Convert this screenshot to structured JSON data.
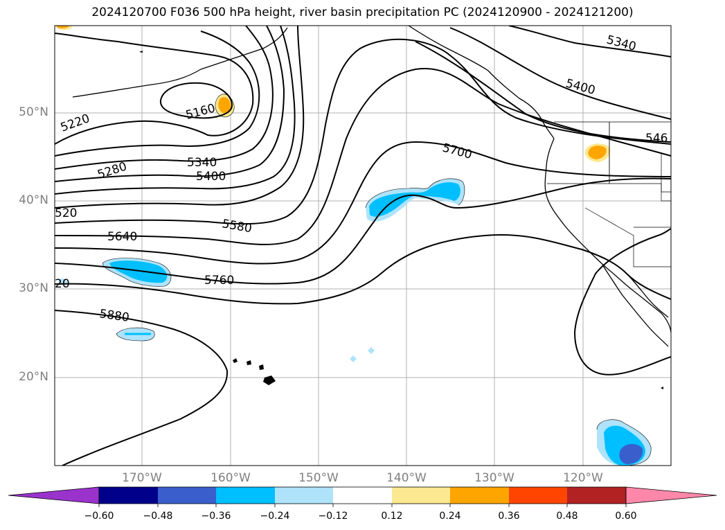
{
  "title": "2024120700 F036 500 hPa height, river basin precipitation PC (2024120900 - 2024121200)",
  "lat_labels": [
    "50°N",
    "40°N",
    "30°N",
    "20°N"
  ],
  "lon_labels": [
    "170°W",
    "160°W",
    "150°W",
    "140°W",
    "130°W",
    "120°W"
  ],
  "contour_labels": [
    {
      "text": "5160"
    },
    {
      "text": "5220"
    },
    {
      "text": "5280"
    },
    {
      "text": "5340"
    },
    {
      "text": "5340"
    },
    {
      "text": "5400"
    },
    {
      "text": "5400"
    },
    {
      "text": "546"
    },
    {
      "text": "520"
    },
    {
      "text": "5580"
    },
    {
      "text": "5640"
    },
    {
      "text": "5700"
    },
    {
      "text": "20"
    },
    {
      "text": "5760"
    },
    {
      "text": "5880"
    }
  ],
  "colorbar": {
    "ticks": [
      "−0.60",
      "−0.48",
      "−0.36",
      "−0.24",
      "−0.12",
      "0.12",
      "0.24",
      "0.36",
      "0.48",
      "0.60"
    ],
    "colors": [
      "#9933cc",
      "#00008b",
      "#3a5fcd",
      "#00bfff",
      "#aee3fb",
      "#ffffff",
      "#fce890",
      "#ffa500",
      "#ff4500",
      "#b22222",
      "#ff88aa",
      "#ff88aa"
    ],
    "extend": "both"
  }
}
